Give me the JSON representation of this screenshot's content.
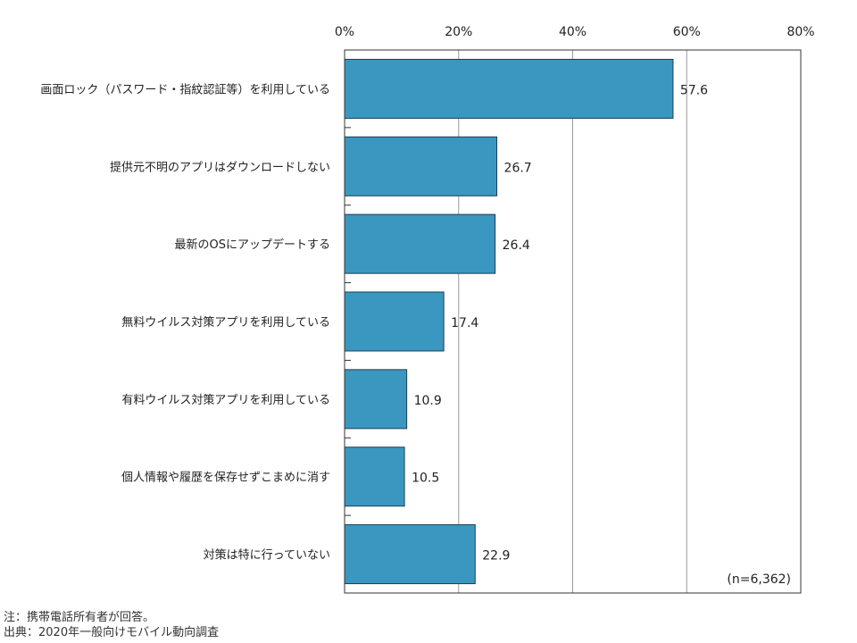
{
  "chart_data": {
    "type": "bar",
    "orientation": "horizontal",
    "categories": [
      "画面ロック（パスワード・指紋認証等）を利用している",
      "提供元不明のアプリはダウンロードしない",
      "最新のOSにアップデートする",
      "無料ウイルス対策アプリを利用している",
      "有料ウイルス対策アプリを利用している",
      "個人情報や履歴を保存せずこまめに消す",
      "対策は特に行っていない"
    ],
    "values": [
      57.6,
      26.7,
      26.4,
      17.4,
      10.9,
      10.5,
      22.9
    ],
    "value_labels": [
      "57.6",
      "26.7",
      "26.4",
      "17.4",
      "10.9",
      "10.5",
      "22.9"
    ],
    "xlim": [
      0,
      80
    ],
    "ticks": [
      0,
      20,
      40,
      60,
      80
    ],
    "tick_labels": [
      "0%",
      "20%",
      "40%",
      "60%",
      "80%"
    ],
    "tick_position": "top",
    "grid": true,
    "sample_size": "(n=6,362)",
    "bar_color": "#3a97bf",
    "bar_edge_color": "#1f3d52"
  },
  "notes": {
    "note": "注：携帯電話所有者が回答。",
    "source": "出典：2020年一般向けモバイル動向調査"
  }
}
